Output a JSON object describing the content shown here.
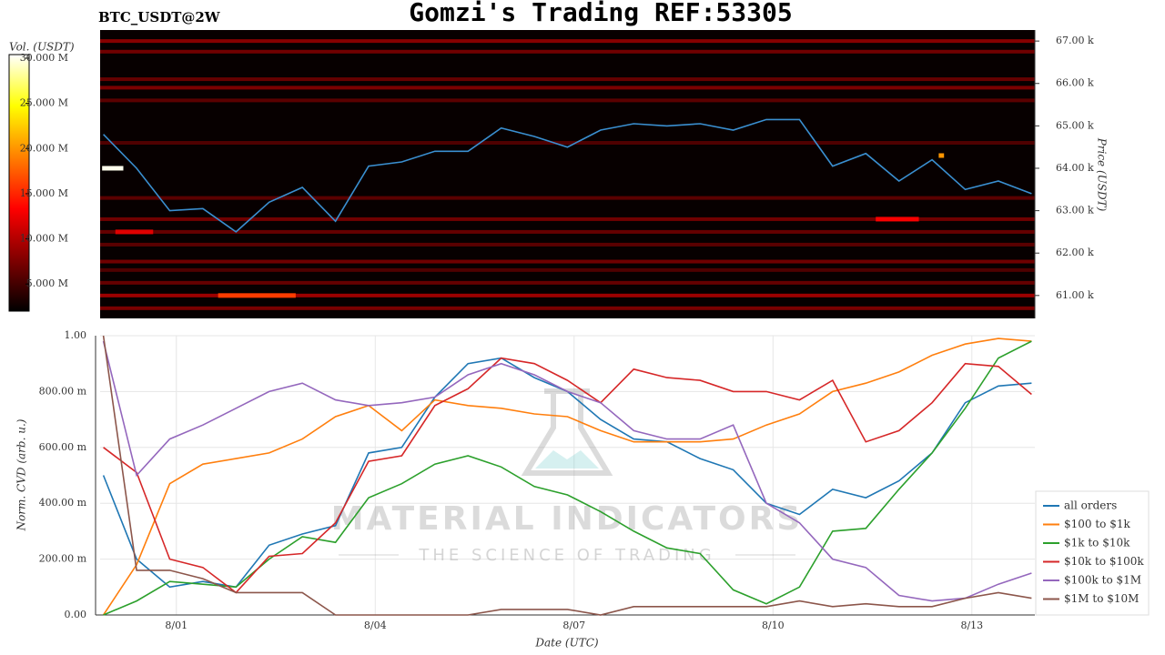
{
  "chart_data": [
    {
      "type": "heatmap",
      "title": "Gomzi's Trading REF:53305",
      "subtitle": "BTC_USDT@2W",
      "y_label": "Price (USDT)",
      "colorbar_label": "Vol. (USDT)",
      "x": [
        -0.1,
        0.4,
        0.9,
        1.4,
        1.9,
        2.4,
        2.9,
        3.4,
        3.9,
        4.4,
        4.9,
        5.4,
        5.9,
        6.4,
        6.9,
        7.4,
        7.9,
        8.4,
        8.9,
        9.4,
        9.9,
        10.4,
        10.9,
        11.4,
        11.9,
        12.4,
        12.9,
        13.4,
        13.9
      ],
      "xlim": [
        -0.15,
        13.95
      ],
      "series": [
        {
          "name": "Price",
          "color": "#3a8fd0",
          "values": [
            64800,
            64000,
            63000,
            63050,
            62500,
            63200,
            63550,
            62750,
            64050,
            64150,
            64400,
            64400,
            64950,
            64750,
            64500,
            64900,
            65050,
            65000,
            65050,
            64900,
            65150,
            65150,
            64050,
            64350,
            63700,
            64200,
            63500,
            63700,
            63400
          ]
        }
      ],
      "ylim": [
        60460,
        67260
      ],
      "yticks": [
        {
          "value": 61000,
          "label": "61.00 k"
        },
        {
          "value": 62000,
          "label": "62.00 k"
        },
        {
          "value": 63000,
          "label": "63.00 k"
        },
        {
          "value": 64000,
          "label": "64.00 k"
        },
        {
          "value": 65000,
          "label": "65.00 k"
        },
        {
          "value": 66000,
          "label": "66.00 k"
        },
        {
          "value": 67000,
          "label": "67.00 k"
        }
      ],
      "band_prices": [
        67000,
        66750,
        66100,
        65900,
        65600,
        64600,
        63300,
        62800,
        62500,
        62200,
        61800,
        61600,
        61300,
        61000,
        60700
      ],
      "band_volumes": [
        8000000,
        7000000,
        6500000,
        7500000,
        6000000,
        5500000,
        6000000,
        7000000,
        6500000,
        6000000,
        7000000,
        5500000,
        6500000,
        9000000,
        7500000
      ],
      "spots": [
        {
          "x": [
            1.63,
            2.8
          ],
          "price": 61000,
          "volume": 16000000
        },
        {
          "x": [
            -0.12,
            0.2
          ],
          "price": 64000,
          "volume": 30000000
        },
        {
          "x": [
            0.08,
            0.65
          ],
          "price": 62500,
          "volume": 12000000
        },
        {
          "x": [
            11.55,
            12.2
          ],
          "price": 62800,
          "volume": 13000000
        },
        {
          "x": [
            12.5,
            12.58
          ],
          "price": 64300,
          "volume": 20000000
        }
      ],
      "clim": [
        2000000,
        30400000
      ],
      "cticks": [
        {
          "value": 5000000,
          "label": "5.000 M"
        },
        {
          "value": 10000000,
          "label": "10.000 M"
        },
        {
          "value": 15000000,
          "label": "15.000 M"
        },
        {
          "value": 20000000,
          "label": "20.000 M"
        },
        {
          "value": 25000000,
          "label": "25.000 M"
        },
        {
          "value": 30000000,
          "label": "30.000 M"
        }
      ]
    },
    {
      "type": "line",
      "x_label": "Date (UTC)",
      "y_label": "Norm. CVD (arb. u.)",
      "watermark": "MATERIAL INDICATORS",
      "watermark_subtitle": "THE SCIENCE OF TRADING",
      "x": [
        -0.1,
        0.4,
        0.9,
        1.4,
        1.9,
        2.4,
        2.9,
        3.4,
        3.9,
        4.4,
        4.9,
        5.4,
        5.9,
        6.4,
        6.9,
        7.4,
        7.9,
        8.4,
        8.9,
        9.4,
        9.9,
        10.4,
        10.9,
        11.4,
        11.9,
        12.4,
        12.9,
        13.4,
        13.9
      ],
      "xlim": [
        -0.15,
        13.95
      ],
      "xticks": [
        {
          "value": 1,
          "label": "8/01"
        },
        {
          "value": 4,
          "label": "8/04"
        },
        {
          "value": 7,
          "label": "8/07"
        },
        {
          "value": 10,
          "label": "8/10"
        },
        {
          "value": 13,
          "label": "8/13"
        }
      ],
      "ylim": [
        0,
        1
      ],
      "yticks": [
        {
          "value": 0,
          "label": "0.00"
        },
        {
          "value": 0.2,
          "label": "200.00 m"
        },
        {
          "value": 0.4,
          "label": "400.00 m"
        },
        {
          "value": 0.6,
          "label": "600.00 m"
        },
        {
          "value": 0.8,
          "label": "800.00 m"
        },
        {
          "value": 1,
          "label": "1.00"
        }
      ],
      "grid": true,
      "series": [
        {
          "name": "all orders",
          "color": "#1f77b4",
          "values": [
            0.5,
            0.2,
            0.1,
            0.12,
            0.1,
            0.25,
            0.29,
            0.32,
            0.58,
            0.6,
            0.78,
            0.9,
            0.92,
            0.85,
            0.8,
            0.7,
            0.63,
            0.62,
            0.56,
            0.52,
            0.4,
            0.36,
            0.45,
            0.42,
            0.48,
            0.58,
            0.76,
            0.82,
            0.83
          ]
        },
        {
          "name": "$100 to $1k",
          "color": "#ff7f0e",
          "values": [
            0.0,
            0.18,
            0.47,
            0.54,
            0.56,
            0.58,
            0.63,
            0.71,
            0.75,
            0.66,
            0.77,
            0.75,
            0.74,
            0.72,
            0.71,
            0.66,
            0.62,
            0.62,
            0.62,
            0.63,
            0.68,
            0.72,
            0.8,
            0.83,
            0.87,
            0.93,
            0.97,
            0.99,
            0.98
          ]
        },
        {
          "name": "$1k to $10k",
          "color": "#2ca02c",
          "values": [
            0.0,
            0.05,
            0.12,
            0.11,
            0.1,
            0.2,
            0.28,
            0.26,
            0.42,
            0.47,
            0.54,
            0.57,
            0.53,
            0.46,
            0.43,
            0.37,
            0.3,
            0.24,
            0.22,
            0.09,
            0.04,
            0.1,
            0.3,
            0.31,
            0.45,
            0.58,
            0.74,
            0.92,
            0.98
          ]
        },
        {
          "name": "$10k to $100k",
          "color": "#d62728",
          "values": [
            0.6,
            0.51,
            0.2,
            0.17,
            0.08,
            0.21,
            0.22,
            0.33,
            0.55,
            0.57,
            0.75,
            0.81,
            0.92,
            0.9,
            0.84,
            0.76,
            0.88,
            0.85,
            0.84,
            0.8,
            0.8,
            0.77,
            0.84,
            0.62,
            0.66,
            0.76,
            0.9,
            0.89,
            0.79
          ]
        },
        {
          "name": "$100k to $1M",
          "color": "#9467bd",
          "values": [
            0.98,
            0.5,
            0.63,
            0.68,
            0.74,
            0.8,
            0.83,
            0.77,
            0.75,
            0.76,
            0.78,
            0.86,
            0.9,
            0.86,
            0.8,
            0.76,
            0.66,
            0.63,
            0.63,
            0.68,
            0.4,
            0.33,
            0.2,
            0.17,
            0.07,
            0.05,
            0.06,
            0.11,
            0.15
          ]
        },
        {
          "name": "$1M to $10M",
          "color": "#8c564b",
          "values": [
            1.0,
            0.16,
            0.16,
            0.13,
            0.08,
            0.08,
            0.08,
            0.0,
            0.0,
            0.0,
            0.0,
            0.0,
            0.02,
            0.02,
            0.02,
            0.0,
            0.03,
            0.03,
            0.03,
            0.03,
            0.03,
            0.05,
            0.03,
            0.04,
            0.03,
            0.03,
            0.06,
            0.08,
            0.06
          ]
        }
      ]
    }
  ]
}
